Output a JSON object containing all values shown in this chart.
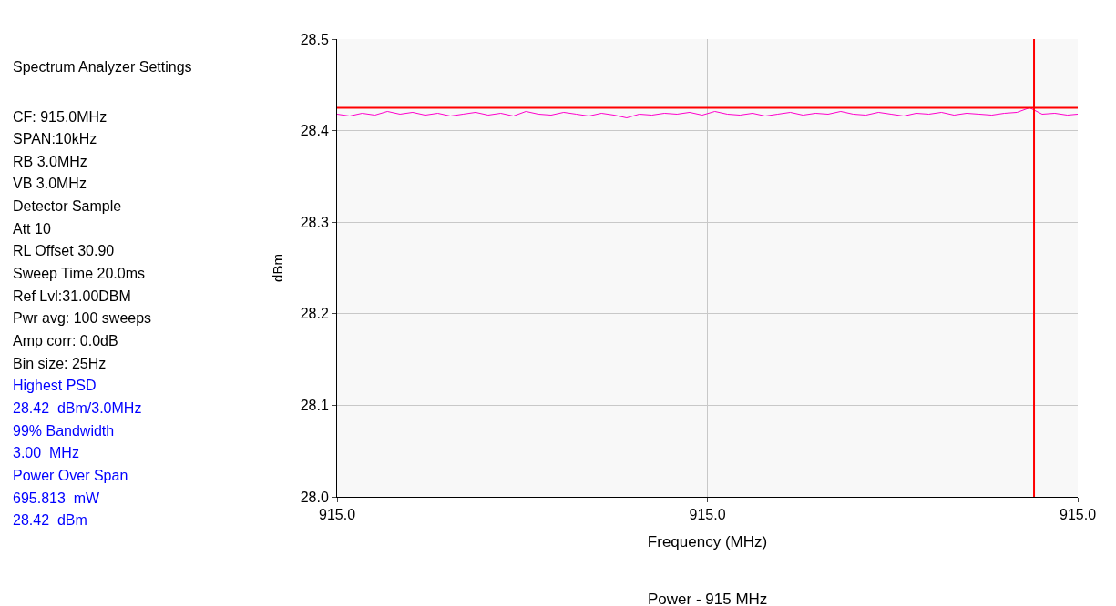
{
  "chart_data": {
    "type": "line",
    "title": "Power - 915 MHz",
    "xlabel": "Frequency (MHz)",
    "ylabel": "dBm",
    "x": [
      914.995,
      914.99517,
      914.99534,
      914.99551,
      914.99568,
      914.99585,
      914.99602,
      914.99619,
      914.99636,
      914.99653,
      914.9967,
      914.99687,
      914.99704,
      914.99721,
      914.99738,
      914.99755,
      914.99772,
      914.99789,
      914.99806,
      914.99823,
      914.9984,
      914.99857,
      914.99874,
      914.99891,
      914.99908,
      914.99925,
      914.99942,
      914.99959,
      914.99976,
      914.99993,
      915.0001,
      915.00027,
      915.00044,
      915.00061,
      915.00078,
      915.00095,
      915.00112,
      915.00129,
      915.00146,
      915.00163,
      915.0018,
      915.00197,
      915.00214,
      915.00231,
      915.00248,
      915.00265,
      915.00282,
      915.00299,
      915.00316,
      915.00333,
      915.0035,
      915.00367,
      915.00384,
      915.00401,
      915.00418,
      915.00435,
      915.00452,
      915.00469,
      915.00486,
      915.005
    ],
    "series": [
      {
        "color": "#ff00cc",
        "values": [
          28.418,
          28.416,
          28.419,
          28.417,
          28.421,
          28.418,
          28.42,
          28.417,
          28.419,
          28.416,
          28.418,
          28.42,
          28.417,
          28.419,
          28.416,
          28.421,
          28.418,
          28.417,
          28.42,
          28.418,
          28.416,
          28.419,
          28.417,
          28.414,
          28.418,
          28.417,
          28.419,
          28.418,
          28.42,
          28.417,
          28.421,
          28.418,
          28.417,
          28.419,
          28.416,
          28.418,
          28.42,
          28.417,
          28.419,
          28.418,
          28.421,
          28.418,
          28.417,
          28.42,
          28.418,
          28.416,
          28.419,
          28.418,
          28.42,
          28.417,
          28.419,
          28.418,
          28.417,
          28.419,
          28.42,
          28.425,
          28.418,
          28.419,
          28.417,
          28.418
        ]
      }
    ],
    "xlim": [
      914.995,
      915.005
    ],
    "xticks": [
      {
        "value": 914.995,
        "label": "915.0"
      },
      {
        "value": 915.0,
        "label": "915.0"
      },
      {
        "value": 915.005,
        "label": "915.0"
      }
    ],
    "ylim": [
      28.0,
      28.5
    ],
    "yticks": [
      {
        "value": 28.0,
        "label": "28.0"
      },
      28.1,
      28.2,
      28.3,
      28.4,
      28.5
    ],
    "grid": true,
    "marker": "none",
    "line_style": "solid",
    "ref_lines": [
      {
        "axis": "y",
        "value": 28.425,
        "color": "#ff0000"
      },
      {
        "axis": "x",
        "value": 915.00441,
        "color": "#ff0000"
      }
    ],
    "annotations": [
      "Spectrum Analyzer Settings",
      "CF: 915.0MHz",
      "SPAN:10kHz",
      "RB 3.0MHz",
      "VB 3.0MHz",
      "Detector Sample",
      "Att 10",
      "RL Offset 30.90",
      "Sweep Time 20.0ms",
      "Ref Lvl:31.00DBM",
      "Pwr avg: 100 sweeps",
      "Amp corr: 0.0dB",
      "Bin size: 25Hz",
      "Highest PSD",
      "28.42  dBm/3.0MHz",
      "99% Bandwidth",
      "3.00  MHz",
      "Power Over Span",
      "695.813  mW",
      "28.42  dBm"
    ]
  }
}
